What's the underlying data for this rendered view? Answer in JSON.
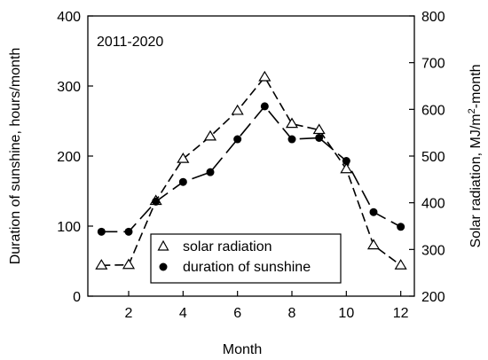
{
  "chart_data": {
    "type": "line",
    "annotation": "2011-2020",
    "xlabel": "Month",
    "ylabel_left": "Duration of sunshine, hours/month",
    "ylabel_right": "Solar radiation, MJ/m²-month",
    "xlim": [
      0.5,
      12.5
    ],
    "ylim_left": [
      0,
      400
    ],
    "ylim_right": [
      200,
      800
    ],
    "x_ticks": [
      2,
      4,
      6,
      8,
      10,
      12
    ],
    "y_ticks_left": [
      0,
      100,
      200,
      300,
      400
    ],
    "y_ticks_right": [
      200,
      300,
      400,
      500,
      600,
      700,
      800
    ],
    "x_tick_labels": [
      "2",
      "4",
      "6",
      "8",
      "10",
      "12"
    ],
    "y_tick_labels_left": [
      "0",
      "100",
      "200",
      "300",
      "400"
    ],
    "y_tick_labels_right": [
      "200",
      "300",
      "400",
      "500",
      "600",
      "700",
      "800"
    ],
    "grid": false,
    "legend_position": "bottom-center",
    "x": [
      1,
      2,
      3,
      4,
      5,
      6,
      7,
      8,
      9,
      10,
      11,
      12
    ],
    "series": [
      {
        "name": "solar radiation",
        "axis": "right",
        "marker": "open-triangle",
        "line": "dashed",
        "values": [
          266,
          267,
          404,
          494,
          542,
          597,
          669,
          569,
          556,
          472,
          309,
          266
        ]
      },
      {
        "name": "duration of sunshine",
        "axis": "left",
        "marker": "filled-circle",
        "line": "long-dash",
        "values": [
          92,
          92,
          135,
          163,
          177,
          224,
          271,
          224,
          226,
          193,
          120,
          99
        ]
      }
    ]
  }
}
